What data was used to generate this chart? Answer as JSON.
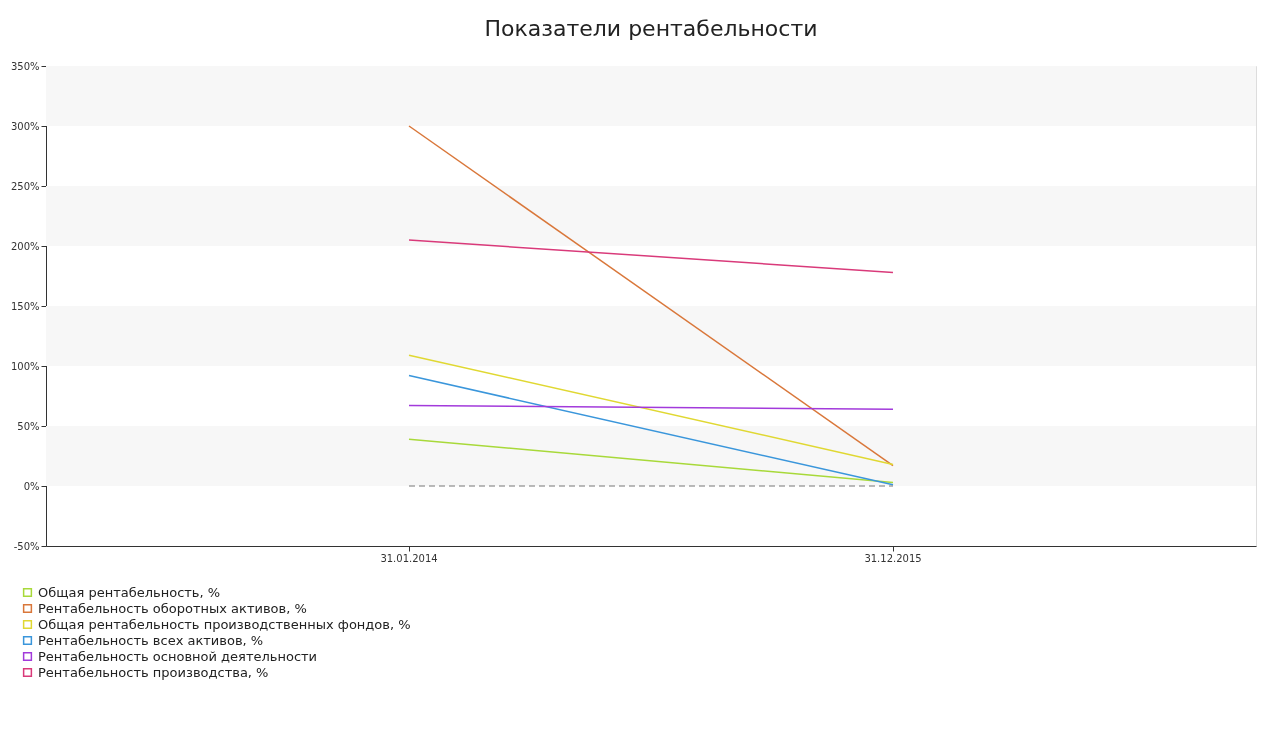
{
  "chart_data": {
    "type": "line",
    "title": "Показатели рентабельности",
    "categories": [
      "31.01.2014",
      "31.12.2015"
    ],
    "series": [
      {
        "name": "Общая рентабельность, %",
        "color": "#a8d93a",
        "values": [
          39,
          3
        ]
      },
      {
        "name": "Рентабельность оборотных активов, %",
        "color": "#d9773a",
        "values": [
          300,
          17
        ]
      },
      {
        "name": "Общая рентабельность производственных фондов, %",
        "color": "#e0d832",
        "values": [
          109,
          18
        ]
      },
      {
        "name": "Рентабельность всех активов, %",
        "color": "#3a96db",
        "values": [
          92,
          1
        ]
      },
      {
        "name": "Рентабельность основной деятельности",
        "color": "#a23adb",
        "values": [
          67,
          64
        ]
      },
      {
        "name": "Рентабельность производства, %",
        "color": "#d93a7a",
        "values": [
          205,
          178
        ]
      }
    ],
    "ylim": [
      -50,
      350
    ],
    "yticks": [
      {
        "value": -50,
        "label": "-50%"
      },
      {
        "value": 0,
        "label": "0%"
      },
      {
        "value": 50,
        "label": "50%"
      },
      {
        "value": 100,
        "label": "100%"
      },
      {
        "value": 150,
        "label": "150%"
      },
      {
        "value": 200,
        "label": "200%"
      },
      {
        "value": 250,
        "label": "250%"
      },
      {
        "value": 300,
        "label": "300%"
      },
      {
        "value": 350,
        "label": "350%"
      }
    ],
    "ref_lines": [
      {
        "axis": "y",
        "value": 0,
        "color": "#777777",
        "line_style": "dashed"
      }
    ],
    "bands": [
      {
        "axis": "y",
        "from": 0,
        "to": 50,
        "color": "#f7f7f7"
      },
      {
        "axis": "y",
        "from": 100,
        "to": 150,
        "color": "#f7f7f7"
      },
      {
        "axis": "y",
        "from": 200,
        "to": 250,
        "color": "#f7f7f7"
      },
      {
        "axis": "y",
        "from": 300,
        "to": 350,
        "color": "#f7f7f7"
      }
    ],
    "legend": "bottom left",
    "grid": false,
    "marker": "none",
    "line_style": "solid"
  }
}
